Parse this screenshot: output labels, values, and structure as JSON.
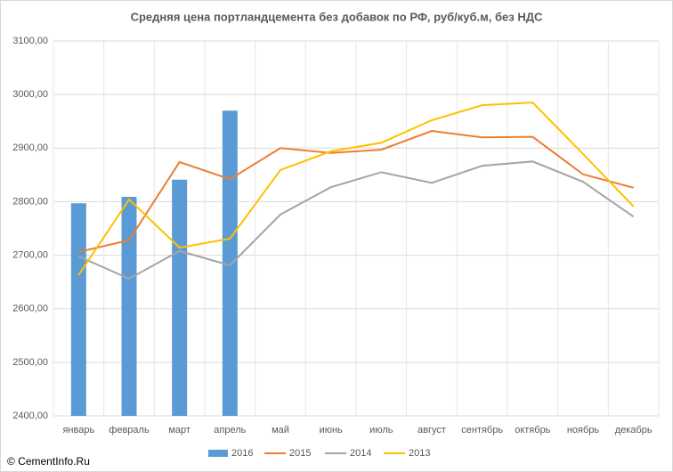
{
  "chart_data": {
    "type": "line",
    "title": "Средняя цена портландцемента без добавок по РФ, руб/куб.м, без НДС",
    "annotation": "© CementInfo.Ru",
    "categories": [
      "январь",
      "февраль",
      "март",
      "апрель",
      "май",
      "июнь",
      "июль",
      "август",
      "сентябрь",
      "октябрь",
      "ноябрь",
      "декабрь"
    ],
    "series": [
      {
        "name": "2016",
        "type": "bar",
        "color": "#5b9bd5",
        "values": [
          2797,
          2809,
          2841,
          2970,
          null,
          null,
          null,
          null,
          null,
          null,
          null,
          null
        ]
      },
      {
        "name": "2015",
        "type": "line",
        "color": "#ed7d31",
        "values": [
          2706,
          2728,
          2874,
          2842,
          2900,
          2891,
          2897,
          2932,
          2920,
          2921,
          2851,
          2826
        ]
      },
      {
        "name": "2014",
        "type": "line",
        "color": "#a5a5a5",
        "values": [
          2698,
          2656,
          2708,
          2681,
          2776,
          2827,
          2855,
          2835,
          2867,
          2875,
          2837,
          2772
        ]
      },
      {
        "name": "2013",
        "type": "line",
        "color": "#ffc000",
        "values": [
          2663,
          2804,
          2714,
          2731,
          2859,
          2894,
          2910,
          2952,
          2980,
          2985,
          2889,
          2791
        ]
      }
    ],
    "ylim": [
      2400,
      3100
    ],
    "yticks": [
      {
        "value": 2400,
        "label": "2400,00"
      },
      {
        "value": 2500,
        "label": "2500,00"
      },
      {
        "value": 2600,
        "label": "2600,00"
      },
      {
        "value": 2700,
        "label": "2700,00"
      },
      {
        "value": 2800,
        "label": "2800,00"
      },
      {
        "value": 2900,
        "label": "2900,00"
      },
      {
        "value": 3000,
        "label": "3000,00"
      },
      {
        "value": 3100,
        "label": "3100,00"
      }
    ],
    "grid": true,
    "legend": "bottom"
  }
}
